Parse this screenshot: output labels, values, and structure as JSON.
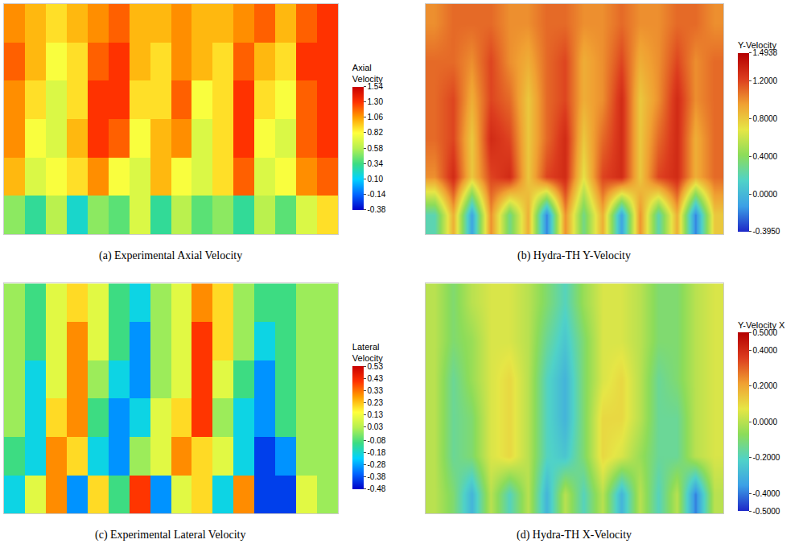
{
  "chart_data": [
    {
      "type": "heatmap",
      "title": "(a) Experimental Axial Velocity",
      "colorbar_title": "Axial Velocity",
      "tick_labels": false,
      "colors": [
        "#0000c8",
        "#0064ff",
        "#00d2ff",
        "#3cdc82",
        "#b4f050",
        "#ffff3c",
        "#ffa000",
        "#ff3200",
        "#c80000"
      ],
      "zlim": [
        -0.38,
        1.54
      ],
      "zticks": [
        1.54,
        {
          "value": 1.3,
          "label": "1.30"
        },
        1.06,
        0.82,
        0.58,
        0.34,
        {
          "value": 0.1,
          "label": "0.10"
        },
        -0.14,
        -0.38
      ],
      "z": [
        [
          0.5,
          0.3,
          0.6,
          0.2,
          0.5,
          0.4,
          0.7,
          0.3,
          0.6,
          0.4,
          0.5,
          0.3,
          0.6,
          0.4,
          0.7,
          0.9
        ],
        [
          1.0,
          0.7,
          0.8,
          0.9,
          1.1,
          0.8,
          0.7,
          1.0,
          0.8,
          0.7,
          0.9,
          1.2,
          0.7,
          0.8,
          1.1,
          1.2
        ],
        [
          1.1,
          0.8,
          0.7,
          1.0,
          1.3,
          1.2,
          0.8,
          1.0,
          1.1,
          0.7,
          0.9,
          1.3,
          0.8,
          0.7,
          1.2,
          1.3
        ],
        [
          1.1,
          0.9,
          0.7,
          0.9,
          1.3,
          1.3,
          0.9,
          0.9,
          1.2,
          0.8,
          0.9,
          1.3,
          0.9,
          0.8,
          1.2,
          1.3
        ],
        [
          1.2,
          1.0,
          0.8,
          0.9,
          1.2,
          1.3,
          1.0,
          0.9,
          1.1,
          1.0,
          0.9,
          1.2,
          1.0,
          0.9,
          1.3,
          1.3
        ],
        [
          1.1,
          1.0,
          0.9,
          1.0,
          1.1,
          1.2,
          1.0,
          1.0,
          1.1,
          1.0,
          1.0,
          1.1,
          1.2,
          1.0,
          1.2,
          1.3
        ]
      ]
    },
    {
      "type": "heatmap",
      "title": "(b) Hydra-TH Y-Velocity",
      "colorbar_title": "Y-Velocity",
      "tick_labels": false,
      "colors": [
        "#1e28c8",
        "#3ca0e6",
        "#50d2c8",
        "#8cdc5a",
        "#e6e646",
        "#f0a032",
        "#dc3c1e",
        "#b40000"
      ],
      "zlim": [
        -0.395,
        1.4938
      ],
      "zticks": [
        1.4938,
        {
          "value": 1.2,
          "label": "1.2000"
        },
        {
          "value": 0.8,
          "label": "0.8000"
        },
        {
          "value": 0.4,
          "label": "0.4000"
        },
        {
          "value": 0,
          "label": "0.0000"
        },
        {
          "value": -0.395,
          "label": "-0.3950"
        }
      ],
      "z": [
        [
          0.2,
          0.9,
          -0.1,
          1.0,
          0.3,
          0.9,
          -0.2,
          1.0,
          0.3,
          0.9,
          -0.1,
          1.0,
          0.2,
          0.9,
          -0.2,
          0.8
        ],
        [
          1.0,
          1.3,
          0.8,
          1.2,
          1.3,
          0.8,
          1.2,
          1.3,
          0.7,
          1.2,
          1.3,
          0.8,
          1.2,
          1.3,
          0.9,
          1.1
        ],
        [
          1.1,
          1.2,
          0.8,
          1.3,
          1.2,
          0.8,
          1.1,
          1.3,
          0.8,
          1.1,
          1.3,
          0.8,
          1.1,
          1.3,
          0.9,
          1.1
        ],
        [
          1.1,
          1.2,
          0.9,
          1.2,
          1.1,
          0.8,
          1.1,
          1.2,
          0.9,
          1.0,
          1.3,
          0.8,
          1.0,
          1.3,
          1.0,
          1.1
        ],
        [
          1.1,
          1.1,
          1.0,
          1.2,
          1.0,
          0.9,
          1.1,
          1.2,
          0.9,
          1.0,
          1.2,
          0.9,
          1.0,
          1.2,
          1.0,
          1.1
        ],
        [
          1.0,
          1.1,
          1.1,
          1.1,
          1.0,
          1.0,
          1.1,
          1.1,
          1.0,
          1.0,
          1.1,
          1.0,
          1.0,
          1.1,
          1.1,
          1.0
        ]
      ]
    },
    {
      "type": "heatmap",
      "title": "(c) Experimental Lateral Velocity",
      "colorbar_title": "Lateral Velocity",
      "tick_labels": false,
      "colors": [
        "#0000c8",
        "#0064ff",
        "#00d2ff",
        "#3cdc82",
        "#b4f050",
        "#ffff3c",
        "#ffa000",
        "#ff3200",
        "#c80000"
      ],
      "zlim": [
        -0.48,
        0.53
      ],
      "zticks": [
        0.53,
        0.43,
        0.33,
        0.23,
        0.13,
        0.03,
        -0.08,
        -0.18,
        -0.28,
        -0.38,
        -0.48
      ],
      "z": [
        [
          -0.2,
          0.1,
          0.3,
          -0.3,
          0.2,
          -0.1,
          0.4,
          -0.3,
          0.1,
          0.2,
          -0.2,
          0.3,
          -0.4,
          -0.4,
          0.1,
          0.0
        ],
        [
          -0.1,
          -0.2,
          0.3,
          0.2,
          -0.2,
          -0.3,
          0.0,
          0.1,
          0.3,
          0.2,
          0.1,
          -0.2,
          -0.4,
          -0.3,
          0.0,
          0.0
        ],
        [
          0.0,
          -0.2,
          0.2,
          0.3,
          -0.1,
          -0.3,
          -0.2,
          0.1,
          0.2,
          0.4,
          0.0,
          -0.2,
          -0.3,
          -0.1,
          0.0,
          0.0
        ],
        [
          0.0,
          -0.2,
          0.1,
          0.3,
          0.0,
          -0.2,
          -0.3,
          0.0,
          0.1,
          0.4,
          0.1,
          -0.1,
          -0.3,
          -0.1,
          0.0,
          0.0
        ],
        [
          0.0,
          -0.1,
          0.1,
          0.3,
          0.1,
          -0.1,
          -0.3,
          0.0,
          0.1,
          0.4,
          0.2,
          0.0,
          -0.2,
          -0.1,
          0.0,
          0.0
        ],
        [
          0.0,
          -0.1,
          0.1,
          0.2,
          0.1,
          -0.1,
          -0.2,
          0.0,
          0.1,
          0.3,
          0.2,
          0.0,
          -0.1,
          -0.1,
          0.0,
          0.0
        ]
      ]
    },
    {
      "type": "heatmap",
      "title": "(d) Hydra-TH X-Velocity",
      "colorbar_title": "Y-Velocity X",
      "tick_labels": false,
      "colors": [
        "#1e28c8",
        "#3ca0e6",
        "#50d2c8",
        "#8cdc5a",
        "#e6e646",
        "#f0a032",
        "#dc3c1e",
        "#b40000"
      ],
      "zlim": [
        -0.5,
        0.5
      ],
      "zticks": [
        {
          "value": 0.5,
          "label": "0.5000"
        },
        {
          "value": 0.4,
          "label": "0.4000"
        },
        {
          "value": 0.2,
          "label": "0.2000"
        },
        {
          "value": 0,
          "label": "0.0000"
        },
        {
          "value": -0.2,
          "label": "-0.2000"
        },
        {
          "value": -0.4,
          "label": "-0.4000"
        },
        {
          "value": -0.5,
          "label": "-0.5000"
        }
      ],
      "z": [
        [
          0.0,
          -0.1,
          -0.3,
          0.0,
          -0.2,
          0.0,
          -0.3,
          0.0,
          -0.2,
          0.0,
          -0.3,
          0.0,
          -0.2,
          0.0,
          -0.4,
          0.0
        ],
        [
          0.0,
          -0.15,
          -0.1,
          0.05,
          0.1,
          0.0,
          -0.2,
          -0.25,
          -0.1,
          0.1,
          0.05,
          -0.05,
          -0.15,
          -0.15,
          0.0,
          0.05
        ],
        [
          0.0,
          -0.15,
          -0.1,
          0.05,
          0.1,
          0.0,
          -0.2,
          -0.3,
          -0.1,
          0.1,
          0.1,
          0.0,
          -0.15,
          -0.15,
          0.0,
          0.05
        ],
        [
          0.0,
          -0.15,
          -0.05,
          0.05,
          0.1,
          0.0,
          -0.2,
          -0.3,
          -0.1,
          0.05,
          0.1,
          0.0,
          -0.15,
          -0.1,
          0.0,
          0.05
        ],
        [
          0.0,
          -0.1,
          -0.05,
          0.05,
          0.05,
          0.0,
          -0.15,
          -0.25,
          -0.1,
          0.05,
          0.05,
          0.0,
          -0.1,
          -0.1,
          0.0,
          0.05
        ],
        [
          0.0,
          -0.1,
          0.0,
          0.05,
          0.05,
          0.0,
          -0.1,
          -0.2,
          -0.05,
          0.05,
          0.05,
          0.0,
          -0.1,
          -0.1,
          0.0,
          0.05
        ]
      ]
    }
  ]
}
